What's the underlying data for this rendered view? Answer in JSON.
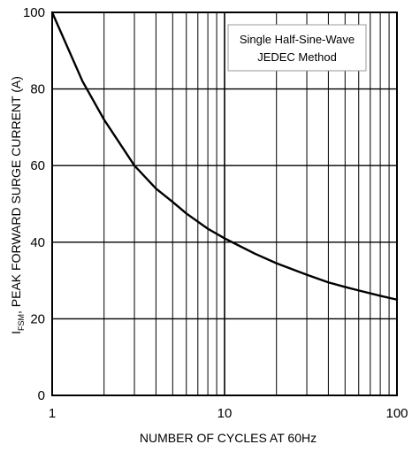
{
  "chart_data": {
    "type": "line",
    "x_scale": "log",
    "xlim": [
      1,
      100
    ],
    "ylim": [
      0,
      100
    ],
    "x_ticks": [
      "1",
      "10",
      "100"
    ],
    "y_ticks": [
      "0",
      "20",
      "40",
      "60",
      "80",
      "100"
    ],
    "xlabel": "NUMBER OF CYCLES AT 60Hz",
    "ylabel_symbol": "I",
    "ylabel_subscript": "FSM",
    "ylabel_rest": ", PEAK FORWARD SURGE CURRENT (A)",
    "annotation": [
      "Single Half-Sine-Wave",
      "JEDEC Method"
    ],
    "grid": true,
    "series": [
      {
        "x": [
          1,
          1.5,
          2,
          3,
          4,
          5,
          6,
          8,
          10,
          15,
          20,
          30,
          40,
          50,
          60,
          80,
          100
        ],
        "y": [
          100,
          82,
          72,
          60,
          54,
          50.5,
          47.5,
          43.5,
          41,
          37,
          34.5,
          31.5,
          29.5,
          28.3,
          27.4,
          26,
          25
        ]
      }
    ],
    "colors": {
      "line": "#000000",
      "grid": "#000000",
      "annotation_border": "#888888"
    }
  }
}
